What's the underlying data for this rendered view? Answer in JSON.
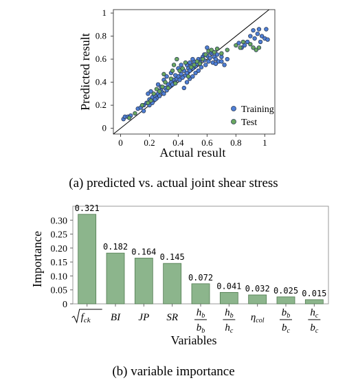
{
  "figure_a": {
    "caption": "(a) predicted vs. actual joint shear stress",
    "colors": {
      "training": "#4f7fd6",
      "test": "#6aa860",
      "stroke": "#2b3a55",
      "line": "#000000"
    }
  },
  "figure_b": {
    "caption": "(b) variable importance",
    "colors": {
      "bar": "#8cb58c",
      "bar_stroke": "#4f7a4f"
    }
  },
  "chart_data": [
    {
      "type": "scatter",
      "title": "",
      "xlabel": "Actual result",
      "ylabel": "Predicted result",
      "xlim": [
        -0.05,
        1.07
      ],
      "ylim": [
        -0.05,
        1.03
      ],
      "x_ticks": [
        "0",
        "0.2",
        "0.4",
        "0.6",
        "0.8",
        "1"
      ],
      "y_ticks": [
        "0",
        "0.2",
        "0.4",
        "0.6",
        "0.8",
        "1"
      ],
      "reference_line": "y = x",
      "legend": {
        "placement": "bottom-right",
        "entries": [
          "Training",
          "Test"
        ]
      },
      "series": [
        {
          "name": "Training",
          "points": [
            [
              0.02,
              0.08
            ],
            [
              0.03,
              0.1
            ],
            [
              0.05,
              0.1
            ],
            [
              0.07,
              0.11
            ],
            [
              0.12,
              0.17
            ],
            [
              0.16,
              0.2
            ],
            [
              0.18,
              0.22
            ],
            [
              0.19,
              0.3
            ],
            [
              0.2,
              0.25
            ],
            [
              0.21,
              0.32
            ],
            [
              0.22,
              0.27
            ],
            [
              0.23,
              0.24
            ],
            [
              0.24,
              0.28
            ],
            [
              0.25,
              0.26
            ],
            [
              0.26,
              0.3
            ],
            [
              0.27,
              0.28
            ],
            [
              0.28,
              0.33
            ],
            [
              0.29,
              0.31
            ],
            [
              0.3,
              0.3
            ],
            [
              0.31,
              0.35
            ],
            [
              0.32,
              0.33
            ],
            [
              0.33,
              0.38
            ],
            [
              0.34,
              0.36
            ],
            [
              0.35,
              0.4
            ],
            [
              0.36,
              0.38
            ],
            [
              0.37,
              0.42
            ],
            [
              0.38,
              0.4
            ],
            [
              0.39,
              0.43
            ],
            [
              0.4,
              0.45
            ],
            [
              0.41,
              0.42
            ],
            [
              0.42,
              0.47
            ],
            [
              0.43,
              0.44
            ],
            [
              0.44,
              0.5
            ],
            [
              0.45,
              0.46
            ],
            [
              0.46,
              0.48
            ],
            [
              0.47,
              0.52
            ],
            [
              0.48,
              0.5
            ],
            [
              0.49,
              0.55
            ],
            [
              0.5,
              0.52
            ],
            [
              0.51,
              0.58
            ],
            [
              0.52,
              0.54
            ],
            [
              0.53,
              0.56
            ],
            [
              0.54,
              0.6
            ],
            [
              0.55,
              0.57
            ],
            [
              0.56,
              0.53
            ],
            [
              0.57,
              0.62
            ],
            [
              0.58,
              0.59
            ],
            [
              0.59,
              0.55
            ],
            [
              0.6,
              0.63
            ],
            [
              0.61,
              0.58
            ],
            [
              0.62,
              0.61
            ],
            [
              0.63,
              0.65
            ],
            [
              0.64,
              0.57
            ],
            [
              0.65,
              0.62
            ],
            [
              0.66,
              0.6
            ],
            [
              0.67,
              0.64
            ],
            [
              0.68,
              0.58
            ],
            [
              0.7,
              0.62
            ],
            [
              0.72,
              0.55
            ],
            [
              0.74,
              0.6
            ],
            [
              0.35,
              0.48
            ],
            [
              0.38,
              0.46
            ],
            [
              0.4,
              0.52
            ],
            [
              0.42,
              0.55
            ],
            [
              0.44,
              0.35
            ],
            [
              0.46,
              0.4
            ],
            [
              0.48,
              0.43
            ],
            [
              0.5,
              0.45
            ],
            [
              0.52,
              0.48
            ],
            [
              0.54,
              0.5
            ],
            [
              0.3,
              0.42
            ],
            [
              0.32,
              0.45
            ],
            [
              0.26,
              0.38
            ],
            [
              0.28,
              0.36
            ],
            [
              0.86,
              0.72
            ],
            [
              0.88,
              0.75
            ],
            [
              0.9,
              0.8
            ],
            [
              0.92,
              0.85
            ],
            [
              0.93,
              0.78
            ],
            [
              0.95,
              0.82
            ],
            [
              0.96,
              0.86
            ],
            [
              0.97,
              0.75
            ],
            [
              0.98,
              0.8
            ],
            [
              1.0,
              0.78
            ],
            [
              1.01,
              0.86
            ],
            [
              1.02,
              0.77
            ],
            [
              0.82,
              0.74
            ],
            [
              0.84,
              0.7
            ],
            [
              0.6,
              0.7
            ],
            [
              0.62,
              0.66
            ],
            [
              0.58,
              0.64
            ],
            [
              0.56,
              0.6
            ],
            [
              0.66,
              0.56
            ],
            [
              0.7,
              0.58
            ],
            [
              0.2,
              0.2
            ],
            [
              0.22,
              0.22
            ],
            [
              0.24,
              0.25
            ],
            [
              0.16,
              0.15
            ],
            [
              0.14,
              0.18
            ],
            [
              0.46,
              0.55
            ],
            [
              0.48,
              0.57
            ],
            [
              0.5,
              0.6
            ]
          ]
        },
        {
          "name": "Test",
          "points": [
            [
              0.06,
              0.09
            ],
            [
              0.1,
              0.13
            ],
            [
              0.15,
              0.2
            ],
            [
              0.19,
              0.22
            ],
            [
              0.21,
              0.24
            ],
            [
              0.23,
              0.3
            ],
            [
              0.25,
              0.34
            ],
            [
              0.27,
              0.32
            ],
            [
              0.29,
              0.36
            ],
            [
              0.31,
              0.4
            ],
            [
              0.33,
              0.35
            ],
            [
              0.35,
              0.43
            ],
            [
              0.37,
              0.55
            ],
            [
              0.38,
              0.39
            ],
            [
              0.39,
              0.6
            ],
            [
              0.41,
              0.5
            ],
            [
              0.43,
              0.52
            ],
            [
              0.45,
              0.57
            ],
            [
              0.47,
              0.45
            ],
            [
              0.49,
              0.53
            ],
            [
              0.51,
              0.55
            ],
            [
              0.53,
              0.58
            ],
            [
              0.55,
              0.56
            ],
            [
              0.57,
              0.6
            ],
            [
              0.59,
              0.64
            ],
            [
              0.61,
              0.67
            ],
            [
              0.63,
              0.68
            ],
            [
              0.65,
              0.66
            ],
            [
              0.67,
              0.69
            ],
            [
              0.7,
              0.65
            ],
            [
              0.74,
              0.68
            ],
            [
              0.8,
              0.72
            ],
            [
              0.83,
              0.7
            ],
            [
              0.85,
              0.75
            ],
            [
              0.9,
              0.73
            ],
            [
              0.92,
              0.7
            ],
            [
              0.94,
              0.68
            ],
            [
              0.96,
              0.7
            ],
            [
              0.3,
              0.47
            ],
            [
              0.36,
              0.5
            ]
          ]
        }
      ]
    },
    {
      "type": "bar",
      "title": "",
      "xlabel": "Variables",
      "ylabel": "Importance",
      "ylim": [
        0,
        0.35
      ],
      "y_ticks": [
        "0",
        "0.05",
        "0.10",
        "0.15",
        "0.20",
        "0.25",
        "0.30"
      ],
      "grid": false,
      "categories": [
        {
          "kind": "sqrt",
          "base": "f",
          "sub": "ck"
        },
        {
          "kind": "text",
          "text": "BI"
        },
        {
          "kind": "text",
          "text": "JP"
        },
        {
          "kind": "text",
          "text": "SR"
        },
        {
          "kind": "frac",
          "num": "h",
          "num_sub": "b",
          "den": "b",
          "den_sub": "b"
        },
        {
          "kind": "frac",
          "num": "h",
          "num_sub": "b",
          "den": "h",
          "den_sub": "c"
        },
        {
          "kind": "sub",
          "base": "η",
          "sub": "col"
        },
        {
          "kind": "frac",
          "num": "b",
          "num_sub": "b",
          "den": "b",
          "den_sub": "c"
        },
        {
          "kind": "frac",
          "num": "h",
          "num_sub": "c",
          "den": "b",
          "den_sub": "c"
        }
      ],
      "values": [
        0.321,
        0.182,
        0.164,
        0.145,
        0.072,
        0.041,
        0.032,
        0.025,
        0.015
      ],
      "data_labels": [
        "0.321",
        "0.182",
        "0.164",
        "0.145",
        "0.072",
        "0.041",
        "0.032",
        "0.025",
        "0.015"
      ]
    }
  ]
}
